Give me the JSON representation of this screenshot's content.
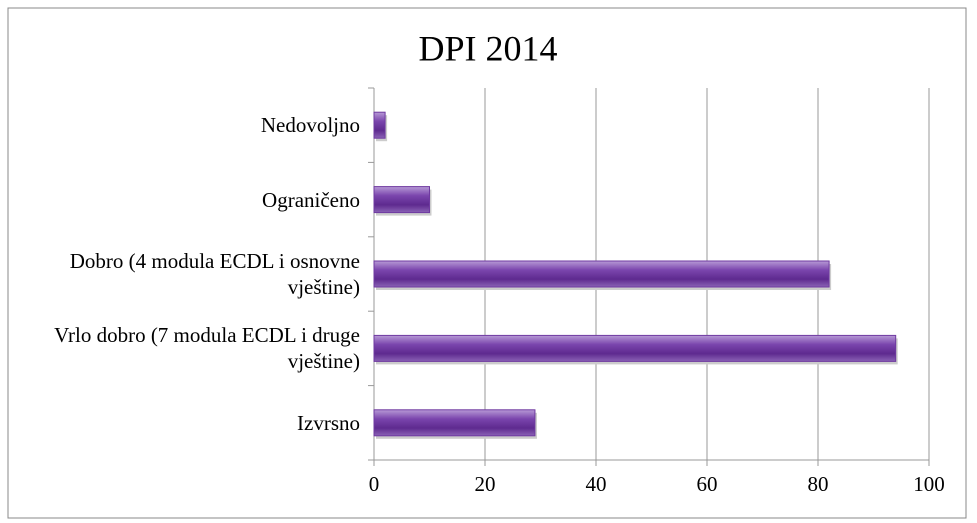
{
  "chart_data": {
    "type": "bar",
    "orientation": "horizontal",
    "title": "DPI 2014",
    "categories": [
      "Nedovoljno",
      "Ograničeno",
      "Dobro (4 modula ECDL i osnovne vještine)",
      "Vrlo dobro (7 modula ECDL i druge vještine)",
      "Izvrsno"
    ],
    "values": [
      2,
      10,
      82,
      94,
      29
    ],
    "color": "#6f3aa0",
    "xlim": [
      0,
      100
    ],
    "xticks": [
      0,
      20,
      40,
      60,
      80,
      100
    ],
    "grid": true
  }
}
